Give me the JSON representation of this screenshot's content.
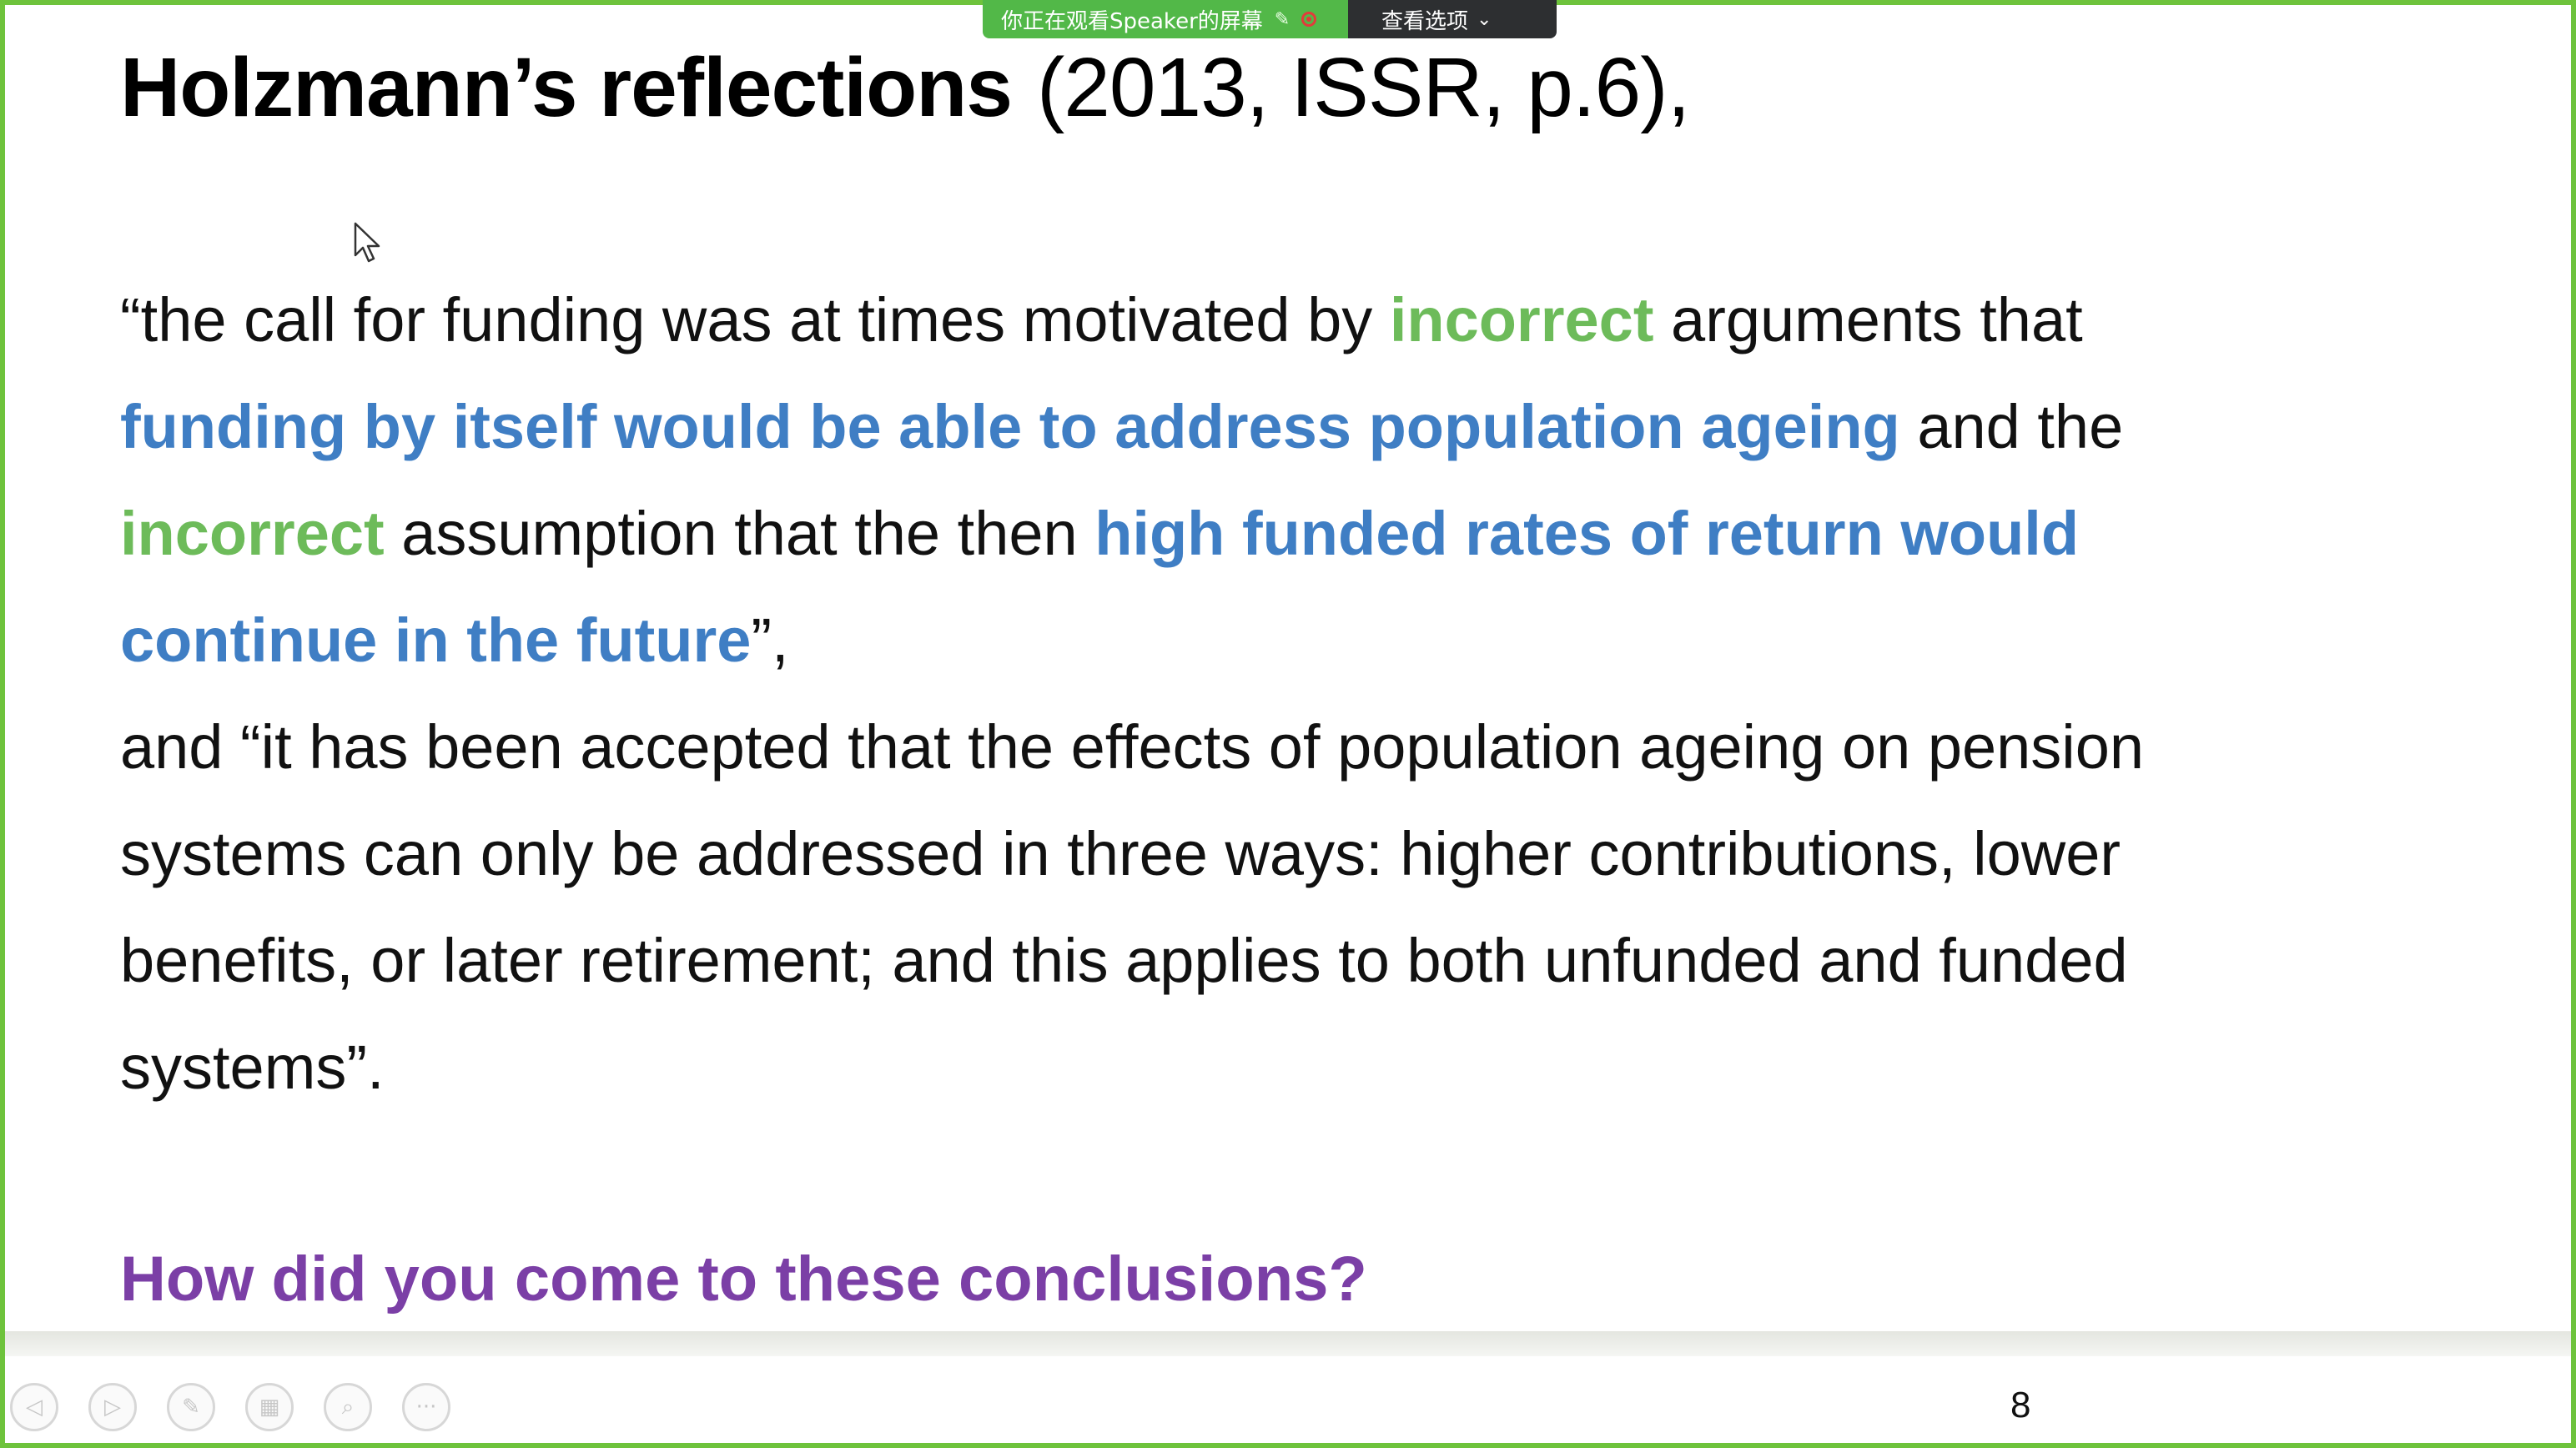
{
  "screen_share": {
    "watching_label": "你正在观看Speaker的屏幕",
    "view_options_label": "查看选项"
  },
  "slide": {
    "title_bold": "Holzmann’s reflections",
    "title_ref": "(2013, ISSR, p.6),",
    "quote": [
      [
        {
          "text": "“the call for funding was at times motivated by ",
          "style": "plain"
        },
        {
          "text": "incorrect",
          "style": "green"
        },
        {
          "text": " arguments that",
          "style": "plain"
        }
      ],
      [
        {
          "text": "funding by itself would be able to address population ageing",
          "style": "blue"
        },
        {
          "text": " and the",
          "style": "plain"
        }
      ],
      [
        {
          "text": "incorrect",
          "style": "green"
        },
        {
          "text": " assumption that the then ",
          "style": "plain"
        },
        {
          "text": "high funded rates of return would",
          "style": "blue"
        }
      ],
      [
        {
          "text": "continue in the future",
          "style": "blue"
        },
        {
          "text": "”,",
          "style": "plain"
        }
      ],
      [
        {
          "text": "and “it has been accepted that the effects of population ageing on pension",
          "style": "plain"
        }
      ],
      [
        {
          "text": "systems can only be addressed in three ways: higher contributions, lower",
          "style": "plain"
        }
      ],
      [
        {
          "text": "benefits, or later retirement; and this applies to both unfunded and funded",
          "style": "plain"
        }
      ],
      [
        {
          "text": "systems”.",
          "style": "plain"
        }
      ]
    ],
    "question": "How did you come to these conclusions?",
    "page_number": "8"
  },
  "toolbar": {
    "buttons": [
      {
        "name": "previous-slide-button",
        "icon": "◁"
      },
      {
        "name": "next-slide-button",
        "icon": "▷"
      },
      {
        "name": "pen-button",
        "icon": "✎"
      },
      {
        "name": "slides-grid-button",
        "icon": "▦"
      },
      {
        "name": "zoom-button",
        "icon": "⌕"
      },
      {
        "name": "more-options-button",
        "icon": "···"
      }
    ]
  },
  "colors": {
    "frame": "#6ec33c",
    "banner_green": "#52b848",
    "banner_dark": "#2d2f31",
    "keyword_green": "#6dbb5a",
    "keyword_blue": "#3f7ec4",
    "question_purple": "#7b3fa6"
  }
}
